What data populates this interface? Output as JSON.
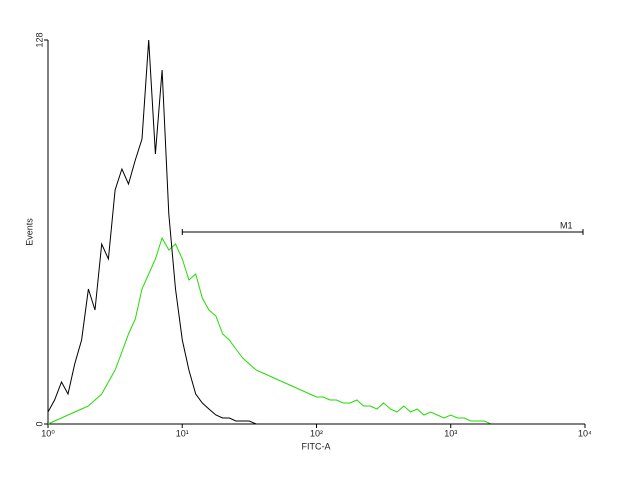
{
  "chart_data": {
    "type": "line",
    "x_label": "FITC-A",
    "y_label": "Events",
    "x_scale": "log",
    "xlim": [
      1,
      10000
    ],
    "xticks": [
      {
        "value": 1,
        "label": "10⁰"
      },
      {
        "value": 10,
        "label": "10¹"
      },
      {
        "value": 100,
        "label": "10²"
      },
      {
        "value": 1000,
        "label": "10³"
      },
      {
        "value": 10000,
        "label": "10⁴"
      }
    ],
    "ylim": [
      0,
      128
    ],
    "yticks": [
      0,
      128
    ],
    "x": [
      1,
      1.12,
      1.26,
      1.41,
      1.58,
      1.78,
      2,
      2.24,
      2.51,
      2.82,
      3.16,
      3.55,
      3.98,
      4.47,
      5.01,
      5.62,
      6.31,
      7.08,
      7.94,
      8.91,
      10,
      11.2,
      12.6,
      14.1,
      15.8,
      17.8,
      20,
      22.4,
      25.1,
      28.2,
      31.6,
      35.5,
      39.8,
      44.7,
      50.1,
      56.2,
      63.1,
      70.8,
      79.4,
      89.1,
      100,
      112,
      126,
      141,
      158,
      178,
      200,
      224,
      251,
      282,
      316,
      355,
      398,
      447,
      501,
      562,
      631,
      708,
      794,
      891,
      1000,
      1122,
      1259,
      1413,
      1585,
      1778,
      1995,
      2239,
      2512,
      2818,
      3162,
      3548,
      3981,
      4467,
      5012,
      5623,
      6310,
      7079,
      7943,
      8913,
      10000
    ],
    "series": [
      {
        "color": "#000000",
        "values": [
          4,
          8,
          14,
          10,
          20,
          28,
          45,
          38,
          60,
          55,
          78,
          85,
          80,
          88,
          95,
          128,
          90,
          118,
          70,
          45,
          28,
          18,
          10,
          7,
          5,
          3,
          2,
          2,
          1,
          1,
          1,
          0,
          0,
          0,
          0,
          0,
          0,
          0,
          0,
          0,
          0,
          0,
          0,
          0,
          0,
          0,
          0,
          0,
          0,
          0,
          0,
          0,
          0,
          0,
          0,
          0,
          0,
          0,
          0,
          0,
          0,
          0,
          0,
          0,
          0,
          0,
          0,
          0,
          0,
          0,
          0,
          0,
          0,
          0,
          0,
          0,
          0,
          0,
          0,
          0,
          0
        ]
      },
      {
        "color": "#22dd00",
        "values": [
          0,
          1,
          2,
          3,
          4,
          5,
          6,
          8,
          10,
          14,
          18,
          24,
          30,
          35,
          45,
          50,
          55,
          62,
          58,
          60,
          55,
          48,
          50,
          42,
          38,
          36,
          30,
          28,
          25,
          22,
          20,
          18,
          17,
          16,
          15,
          14,
          13,
          12,
          11,
          10,
          9,
          9,
          8,
          8,
          7,
          7,
          8,
          6,
          6,
          5,
          7,
          5,
          4,
          6,
          4,
          5,
          3,
          4,
          3,
          2,
          3,
          2,
          2,
          1,
          1,
          1,
          0,
          0,
          0,
          0,
          0,
          0,
          0,
          0,
          0,
          0,
          0,
          0,
          0,
          0,
          0
        ]
      }
    ],
    "marker": {
      "label": "M1",
      "range": [
        10,
        10000
      ],
      "y": 64
    }
  }
}
